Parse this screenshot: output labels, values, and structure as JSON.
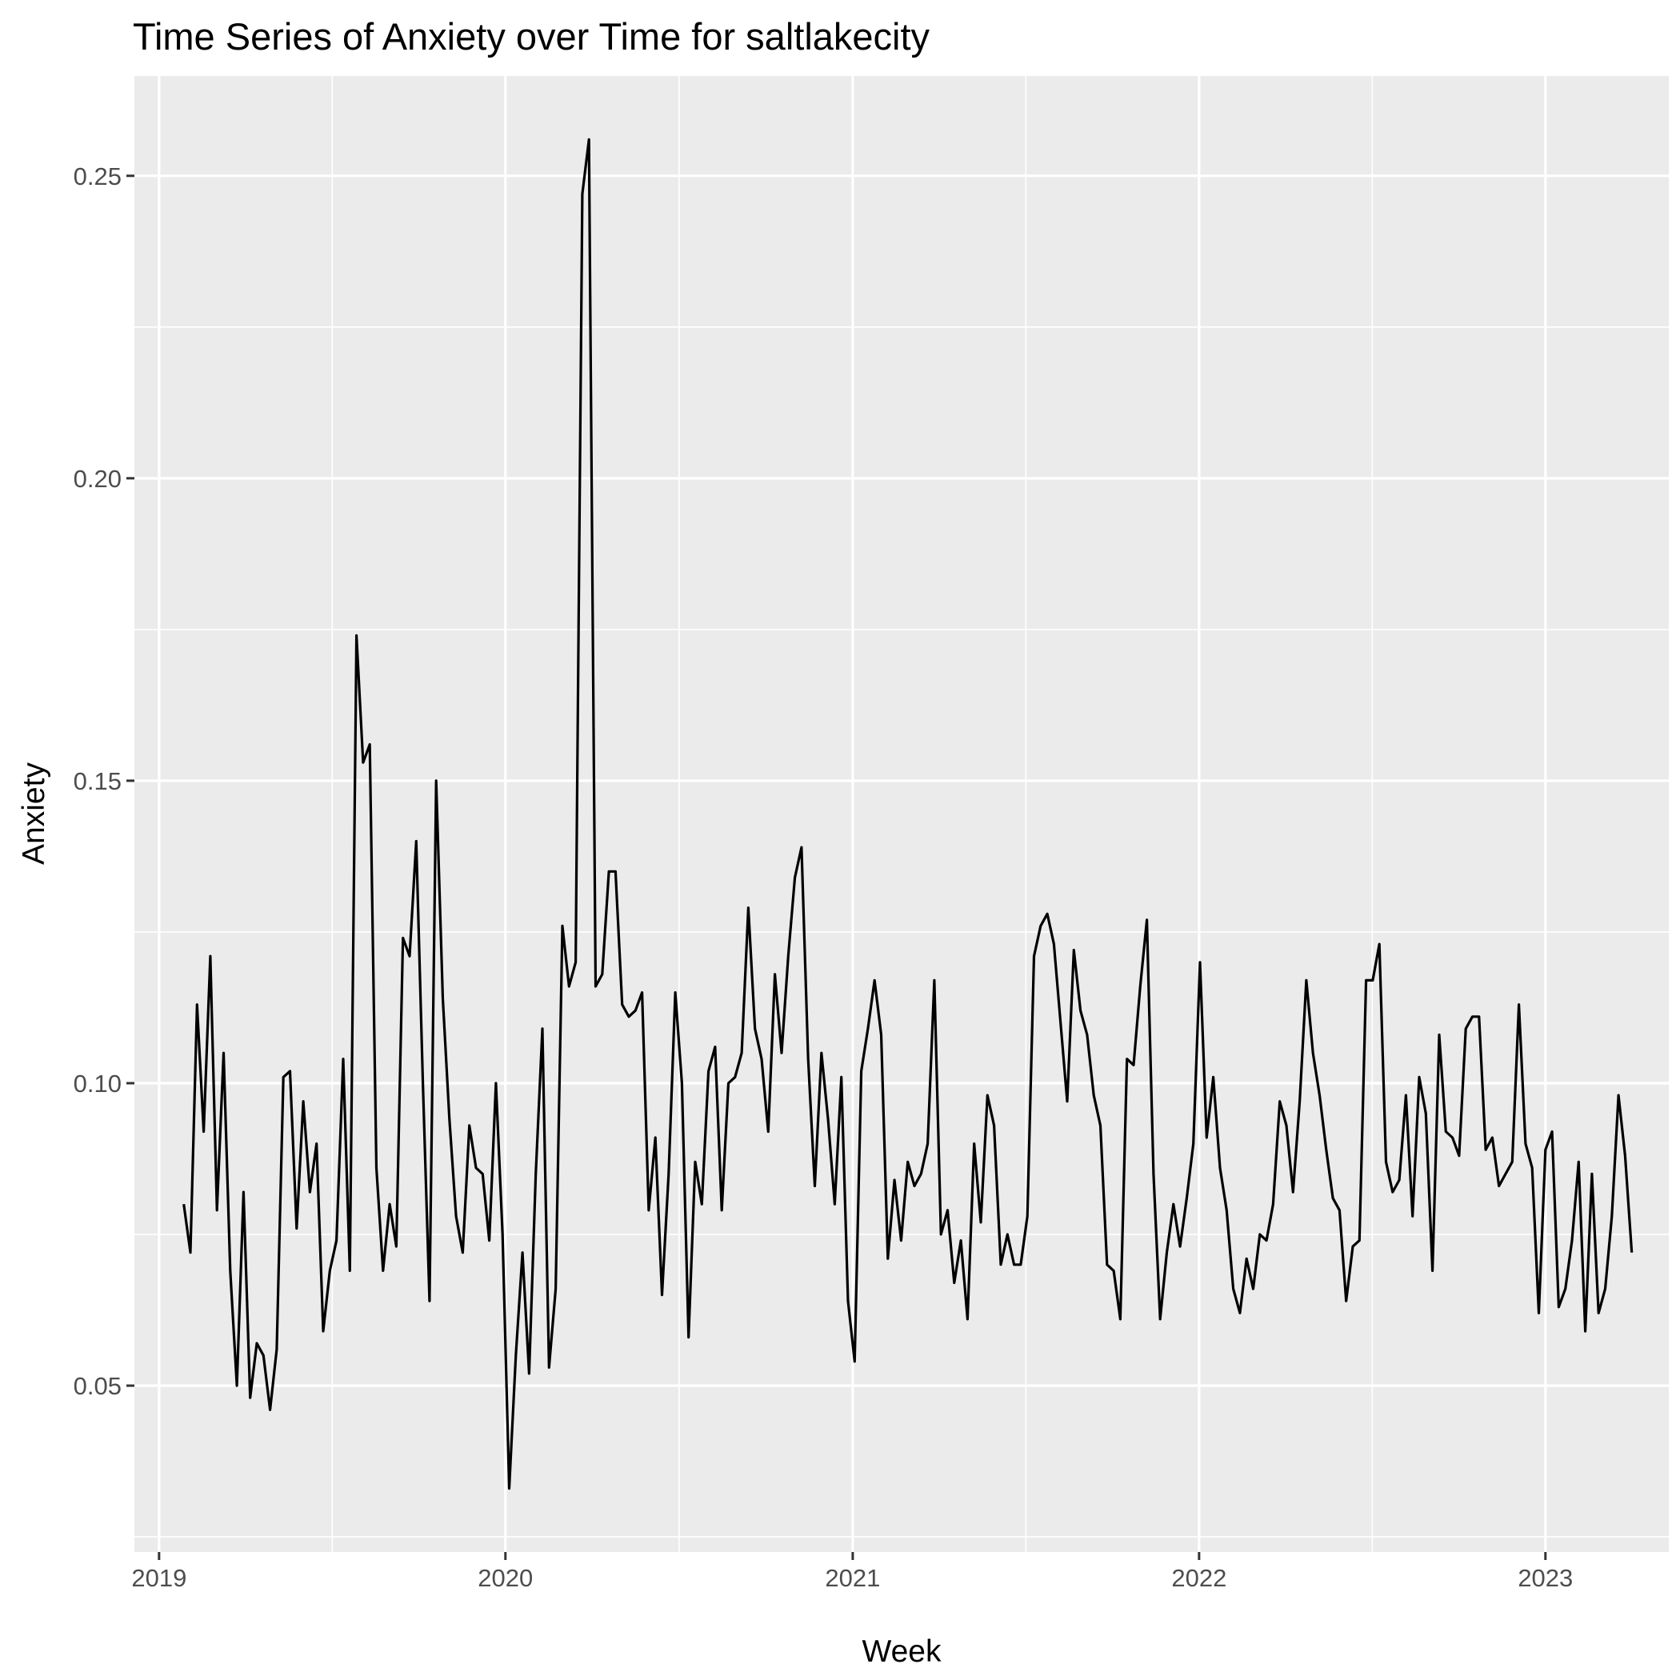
{
  "chart_data": {
    "type": "line",
    "title": "Time Series of Anxiety over Time for  saltlakecity",
    "xlabel": "Week",
    "ylabel": "Anxiety",
    "xlim": [
      "2018-12-06",
      "2023-05-11"
    ],
    "ylim": [
      0.0225,
      0.2665
    ],
    "x_ticks": [
      {
        "label": "2019",
        "date": "2019-01-01"
      },
      {
        "label": "2020",
        "date": "2020-01-01"
      },
      {
        "label": "2021",
        "date": "2021-01-01"
      },
      {
        "label": "2022",
        "date": "2022-01-01"
      },
      {
        "label": "2023",
        "date": "2023-01-01"
      }
    ],
    "y_ticks": [
      0.05,
      0.1,
      0.15,
      0.2,
      0.25
    ],
    "y_tick_labels": [
      "0.05",
      "0.10",
      "0.15",
      "0.20",
      "0.25"
    ],
    "grid": true,
    "legend": "none",
    "colors": {
      "panel": "#ebebeb",
      "grid": "#ffffff",
      "line": "#000000"
    },
    "series": [
      {
        "start_date": "2019-01-27",
        "interval_days": 7,
        "values": [
          0.08,
          0.072,
          0.113,
          0.092,
          0.121,
          0.079,
          0.105,
          0.069,
          0.05,
          0.082,
          0.048,
          0.057,
          0.055,
          0.046,
          0.056,
          0.101,
          0.102,
          0.076,
          0.097,
          0.082,
          0.09,
          0.059,
          0.069,
          0.074,
          0.104,
          0.069,
          0.174,
          0.153,
          0.156,
          0.086,
          0.069,
          0.08,
          0.073,
          0.124,
          0.121,
          0.14,
          0.1,
          0.064,
          0.15,
          0.114,
          0.094,
          0.078,
          0.072,
          0.093,
          0.086,
          0.085,
          0.074,
          0.1,
          0.075,
          0.033,
          0.055,
          0.072,
          0.052,
          0.085,
          0.109,
          0.053,
          0.066,
          0.126,
          0.116,
          0.12,
          0.247,
          0.256,
          0.116,
          0.118,
          0.135,
          0.135,
          0.113,
          0.111,
          0.112,
          0.115,
          0.079,
          0.091,
          0.065,
          0.085,
          0.115,
          0.1,
          0.058,
          0.087,
          0.08,
          0.102,
          0.106,
          0.079,
          0.1,
          0.101,
          0.105,
          0.129,
          0.109,
          0.104,
          0.092,
          0.118,
          0.105,
          0.121,
          0.134,
          0.139,
          0.104,
          0.083,
          0.105,
          0.094,
          0.08,
          0.101,
          0.064,
          0.054,
          0.102,
          0.109,
          0.117,
          0.108,
          0.071,
          0.084,
          0.074,
          0.087,
          0.083,
          0.085,
          0.09,
          0.117,
          0.075,
          0.079,
          0.067,
          0.074,
          0.061,
          0.09,
          0.077,
          0.098,
          0.093,
          0.07,
          0.075,
          0.07,
          0.07,
          0.078,
          0.121,
          0.126,
          0.128,
          0.123,
          0.11,
          0.097,
          0.122,
          0.112,
          0.108,
          0.098,
          0.093,
          0.07,
          0.069,
          0.061,
          0.104,
          0.103,
          0.116,
          0.127,
          0.085,
          0.061,
          0.072,
          0.08,
          0.073,
          0.081,
          0.09,
          0.12,
          0.091,
          0.101,
          0.086,
          0.079,
          0.066,
          0.062,
          0.071,
          0.066,
          0.075,
          0.074,
          0.08,
          0.097,
          0.093,
          0.082,
          0.097,
          0.117,
          0.105,
          0.098,
          0.089,
          0.081,
          0.079,
          0.064,
          0.073,
          0.074,
          0.117,
          0.117,
          0.123,
          0.087,
          0.082,
          0.084,
          0.098,
          0.078,
          0.101,
          0.095,
          0.069,
          0.108,
          0.092,
          0.091,
          0.088,
          0.109,
          0.111,
          0.111,
          0.089,
          0.091,
          0.083,
          0.085,
          0.087,
          0.113,
          0.09,
          0.086,
          0.062,
          0.089,
          0.092,
          0.063,
          0.066,
          0.074,
          0.087,
          0.059,
          0.085,
          0.062,
          0.066,
          0.078,
          0.098,
          0.088,
          0.072
        ]
      }
    ]
  }
}
